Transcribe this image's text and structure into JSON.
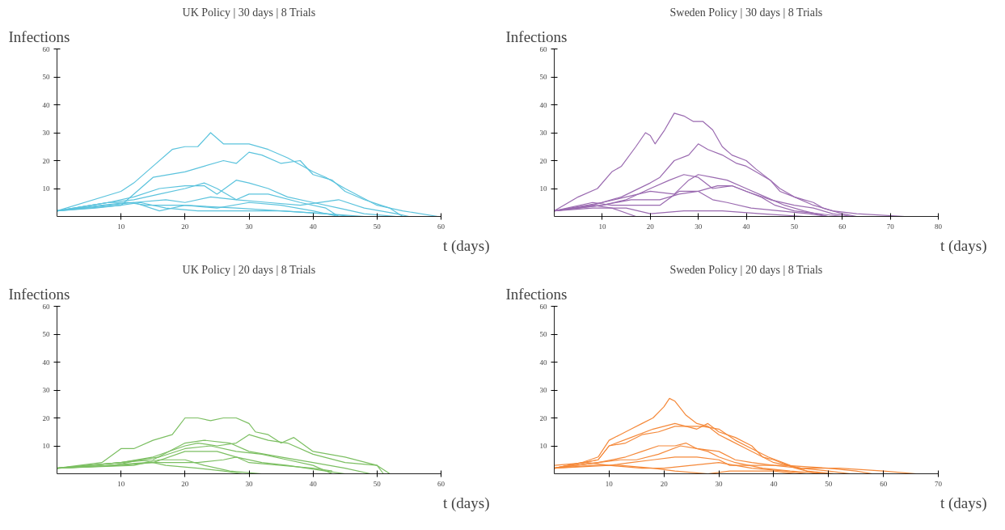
{
  "chart_data": [
    {
      "type": "line",
      "title": "UK Policy | 30 days | 8 Trials",
      "xlabel": "t (days)",
      "ylabel": "Infections",
      "xlim": [
        0,
        60
      ],
      "ylim": [
        0,
        60
      ],
      "xticks": [
        10,
        20,
        30,
        40,
        50,
        60
      ],
      "yticks": [
        10,
        20,
        30,
        40,
        50,
        60
      ],
      "grid": false,
      "series": [
        {
          "color": "#5bc3dd",
          "x": [
            0,
            10,
            12,
            15,
            18,
            20,
            22,
            24,
            26,
            28,
            30,
            33,
            36,
            40,
            42,
            45,
            50,
            54,
            59.5
          ],
          "values": [
            2,
            9,
            12,
            18,
            24,
            25,
            25,
            30,
            26,
            26,
            26,
            24,
            21,
            16,
            14,
            10,
            4,
            2,
            0
          ]
        },
        {
          "color": "#5bc3dd",
          "x": [
            0,
            10,
            15,
            20,
            23,
            26,
            28,
            30,
            32,
            35,
            38,
            40,
            43,
            45,
            48,
            52,
            54
          ],
          "values": [
            2,
            4,
            14,
            16,
            18,
            20,
            19,
            23,
            22,
            19,
            20,
            15,
            13,
            9,
            6,
            3,
            0
          ]
        },
        {
          "color": "#5bc3dd",
          "x": [
            0,
            8,
            12,
            16,
            20,
            23,
            25,
            28,
            30,
            33,
            36,
            40,
            44,
            48,
            53
          ],
          "values": [
            2,
            5,
            7,
            10,
            11,
            11,
            8,
            13,
            12,
            10,
            7,
            5,
            3,
            1,
            0
          ]
        },
        {
          "color": "#5bc3dd",
          "x": [
            0,
            8,
            12,
            16,
            20,
            23,
            25,
            28,
            30,
            33,
            38,
            42,
            44
          ],
          "values": [
            2,
            5,
            6,
            8,
            10,
            12,
            10,
            6,
            8,
            8,
            5,
            3,
            0
          ]
        },
        {
          "color": "#5bc3dd",
          "x": [
            0,
            8,
            12,
            17,
            20,
            24,
            28,
            33,
            38,
            44,
            48,
            53,
            55
          ],
          "values": [
            2,
            4,
            5,
            6,
            5,
            7,
            6,
            5,
            4,
            6,
            3,
            1,
            0
          ]
        },
        {
          "color": "#5bc3dd",
          "x": [
            0,
            8,
            12,
            16,
            20,
            25,
            30,
            35,
            40,
            44
          ],
          "values": [
            2,
            5,
            5,
            2,
            4,
            3,
            5,
            4,
            2,
            0
          ]
        },
        {
          "color": "#5bc3dd",
          "x": [
            0,
            6,
            10,
            13,
            17,
            22,
            28,
            35,
            42,
            48
          ],
          "values": [
            2,
            3,
            4,
            5,
            3,
            2,
            2,
            2,
            1,
            0
          ]
        },
        {
          "color": "#5bc3dd",
          "x": [
            0,
            7,
            11,
            14,
            20,
            28,
            35,
            42,
            46
          ],
          "values": [
            2,
            4,
            5,
            4,
            4,
            3,
            2,
            1,
            0
          ]
        }
      ]
    },
    {
      "type": "line",
      "title": "Sweden Policy | 30 days | 8 Trials",
      "xlabel": "t (days)",
      "ylabel": "Infections",
      "xlim": [
        0,
        80
      ],
      "ylim": [
        0,
        60
      ],
      "xticks": [
        10,
        20,
        30,
        40,
        50,
        60,
        70,
        80
      ],
      "yticks": [
        10,
        20,
        30,
        40,
        50,
        60
      ],
      "grid": false,
      "series": [
        {
          "color": "#9a6ab0",
          "x": [
            0,
            5,
            9,
            12,
            14,
            17,
            19,
            20,
            21,
            23,
            25,
            27,
            29,
            31,
            33,
            35,
            37,
            40,
            42,
            45,
            47,
            50,
            54,
            56,
            60,
            63
          ],
          "values": [
            2,
            7,
            10,
            16,
            18,
            25,
            30,
            29,
            26,
            31,
            37,
            36,
            34,
            34,
            31,
            25,
            22,
            20,
            17,
            13,
            9,
            7,
            5,
            3,
            1,
            0
          ]
        },
        {
          "color": "#9a6ab0",
          "x": [
            0,
            8,
            14,
            20,
            22,
            25,
            28,
            30,
            32,
            35,
            38,
            40,
            42,
            45,
            47,
            50,
            54,
            58,
            63,
            73
          ],
          "values": [
            2,
            4,
            7,
            12,
            14,
            20,
            22,
            26,
            24,
            22,
            19,
            18,
            16,
            13,
            10,
            7,
            4,
            2,
            1,
            0
          ]
        },
        {
          "color": "#9a6ab0",
          "x": [
            0,
            10,
            15,
            20,
            24,
            27,
            30,
            33,
            37,
            40,
            43,
            46,
            50,
            55,
            60
          ],
          "values": [
            2,
            4,
            6,
            10,
            13,
            15,
            14,
            10,
            11,
            9,
            7,
            4,
            2,
            1,
            0
          ]
        },
        {
          "color": "#9a6ab0",
          "x": [
            0,
            10,
            15,
            20,
            25,
            28,
            30,
            33,
            36,
            40,
            44,
            48,
            52,
            57
          ],
          "values": [
            2,
            5,
            7,
            9,
            8,
            13,
            15,
            14,
            13,
            10,
            7,
            4,
            2,
            0
          ]
        },
        {
          "color": "#9a6ab0",
          "x": [
            0,
            10,
            16,
            22,
            26,
            30,
            34,
            37,
            40,
            45,
            50,
            54,
            58,
            62
          ],
          "values": [
            2,
            4,
            6,
            6,
            8,
            9,
            11,
            11,
            9,
            6,
            4,
            3,
            1,
            0
          ]
        },
        {
          "color": "#9a6ab0",
          "x": [
            0,
            8,
            12,
            18,
            22,
            26,
            30,
            33,
            36,
            41,
            47,
            53,
            57
          ],
          "values": [
            2,
            5,
            4,
            4,
            4,
            9,
            9,
            6,
            5,
            3,
            2,
            1,
            0
          ]
        },
        {
          "color": "#9a6ab0",
          "x": [
            0,
            8,
            12,
            17
          ],
          "values": [
            2,
            4,
            3,
            0
          ]
        },
        {
          "color": "#9a6ab0",
          "x": [
            0,
            8,
            15,
            20,
            27,
            35,
            43,
            52
          ],
          "values": [
            2,
            3,
            3,
            1,
            2,
            2,
            1,
            0
          ]
        }
      ]
    },
    {
      "type": "line",
      "title": "UK Policy | 20 days | 8 Trials",
      "xlabel": "t (days)",
      "ylabel": "Infections",
      "xlim": [
        0,
        60
      ],
      "ylim": [
        0,
        60
      ],
      "xticks": [
        10,
        20,
        30,
        40,
        50,
        60
      ],
      "yticks": [
        10,
        20,
        30,
        40,
        50,
        60
      ],
      "grid": false,
      "series": [
        {
          "color": "#7cbf62",
          "x": [
            0,
            7,
            10,
            12,
            15,
            18,
            19,
            20,
            22,
            24,
            26,
            28,
            30,
            31,
            33,
            35,
            37,
            40,
            45,
            50,
            51
          ],
          "values": [
            2,
            4,
            9,
            9,
            12,
            14,
            17,
            20,
            20,
            19,
            20,
            20,
            18,
            15,
            14,
            11,
            13,
            8,
            6,
            3,
            0
          ]
        },
        {
          "color": "#7cbf62",
          "x": [
            0,
            10,
            15,
            20,
            22,
            25,
            28,
            30,
            33,
            36,
            40,
            45,
            50,
            52
          ],
          "values": [
            2,
            4,
            6,
            10,
            11,
            10,
            11,
            14,
            12,
            11,
            7,
            4,
            3,
            0
          ]
        },
        {
          "color": "#7cbf62",
          "x": [
            0,
            10,
            15,
            20,
            23,
            27,
            30,
            35,
            40,
            45,
            49
          ],
          "values": [
            2,
            4,
            5,
            11,
            12,
            11,
            8,
            6,
            4,
            2,
            0
          ]
        },
        {
          "color": "#7cbf62",
          "x": [
            0,
            10,
            16,
            20,
            24,
            28,
            32,
            36,
            40,
            43
          ],
          "values": [
            2,
            4,
            6,
            9,
            10,
            8,
            7,
            5,
            3,
            0
          ]
        },
        {
          "color": "#7cbf62",
          "x": [
            0,
            10,
            15,
            20,
            25,
            28,
            30,
            35,
            40,
            43
          ],
          "values": [
            2,
            3,
            4,
            8,
            8,
            6,
            4,
            3,
            2,
            1
          ]
        },
        {
          "color": "#7cbf62",
          "x": [
            0,
            8,
            14,
            18,
            22,
            26,
            28,
            32,
            36,
            42,
            45
          ],
          "values": [
            2,
            3,
            4,
            4,
            4,
            5,
            6,
            4,
            3,
            1,
            0
          ]
        },
        {
          "color": "#7cbf62",
          "x": [
            0,
            12,
            16,
            20,
            23,
            27,
            32
          ],
          "values": [
            2,
            3,
            5,
            5,
            3,
            1,
            0
          ]
        },
        {
          "color": "#7cbf62",
          "x": [
            0,
            9,
            13,
            17,
            22,
            26,
            29
          ],
          "values": [
            2,
            3,
            5,
            3,
            2,
            1,
            0
          ]
        }
      ]
    },
    {
      "type": "line",
      "title": "Sweden Policy | 20 days | 8 Trials",
      "xlabel": "t (days)",
      "ylabel": "Infections",
      "xlim": [
        0,
        70
      ],
      "ylim": [
        0,
        60
      ],
      "xticks": [
        10,
        20,
        30,
        40,
        50,
        60,
        70
      ],
      "yticks": [
        10,
        20,
        30,
        40,
        50,
        60
      ],
      "grid": false,
      "series": [
        {
          "color": "#f5893a",
          "x": [
            0,
            5,
            8,
            10,
            12,
            14,
            16,
            18,
            20,
            21,
            22,
            24,
            26,
            28,
            30,
            32,
            35,
            38,
            40,
            45,
            50,
            54
          ],
          "values": [
            2,
            4,
            6,
            12,
            14,
            16,
            18,
            20,
            24,
            27,
            26,
            21,
            18,
            17,
            14,
            12,
            9,
            6,
            4,
            2,
            1,
            0
          ]
        },
        {
          "color": "#f5893a",
          "x": [
            0,
            8,
            10,
            14,
            18,
            20,
            22,
            24,
            26,
            28,
            30,
            33,
            36,
            38,
            40,
            44,
            48
          ],
          "values": [
            2,
            5,
            10,
            13,
            16,
            17,
            18,
            17,
            16,
            18,
            15,
            13,
            10,
            6,
            5,
            2,
            0
          ]
        },
        {
          "color": "#f5893a",
          "x": [
            0,
            8,
            10,
            13,
            16,
            19,
            22,
            25,
            27,
            30,
            33,
            36,
            39,
            43,
            46,
            51
          ],
          "values": [
            2,
            5,
            10,
            11,
            14,
            15,
            17,
            17,
            17,
            16,
            12,
            9,
            6,
            3,
            1,
            0
          ]
        },
        {
          "color": "#f5893a",
          "x": [
            0,
            8,
            13,
            16,
            19,
            22,
            24,
            26,
            28,
            30,
            33,
            38,
            43,
            50
          ],
          "values": [
            2,
            4,
            6,
            8,
            10,
            10,
            11,
            9,
            8,
            6,
            4,
            2,
            1,
            0
          ]
        },
        {
          "color": "#f5893a",
          "x": [
            0,
            8,
            12,
            15,
            19,
            23,
            26,
            30,
            33,
            36,
            40,
            45,
            52,
            60,
            66
          ],
          "values": [
            2,
            4,
            5,
            5,
            7,
            10,
            9,
            8,
            5,
            4,
            3,
            2,
            2,
            1,
            0
          ]
        },
        {
          "color": "#f5893a",
          "x": [
            0,
            10,
            14,
            18,
            22,
            26,
            30,
            32,
            38,
            42,
            50,
            55,
            58
          ],
          "values": [
            2,
            3,
            4,
            5,
            6,
            6,
            5,
            3,
            3,
            3,
            2,
            1,
            0
          ]
        },
        {
          "color": "#f5893a",
          "x": [
            0,
            6,
            10,
            16,
            20,
            25,
            30,
            36,
            42,
            46
          ],
          "values": [
            3,
            4,
            3,
            2,
            2,
            3,
            4,
            2,
            1,
            0
          ]
        },
        {
          "color": "#f5893a",
          "x": [
            0,
            7,
            12,
            18,
            22,
            28,
            32,
            40,
            44
          ],
          "values": [
            2,
            3,
            3,
            2,
            1,
            0,
            1,
            1,
            0
          ]
        }
      ]
    }
  ]
}
